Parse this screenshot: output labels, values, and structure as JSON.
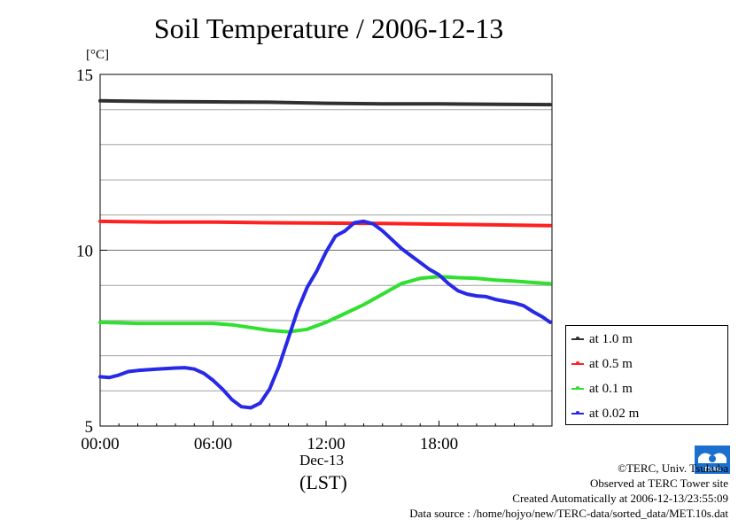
{
  "chart_data": {
    "type": "line",
    "title": "Soil Temperature / 2006-12-13",
    "unit": "[°C]",
    "xlim": [
      0,
      24
    ],
    "ylim": [
      5,
      15
    ],
    "y_major_ticks": [
      5,
      10,
      15
    ],
    "y_grid": [
      6,
      7,
      8,
      9,
      11,
      12,
      13,
      14
    ],
    "x_ticks": [
      0,
      6,
      12,
      18
    ],
    "x_tick_labels": [
      "00:00",
      "06:00",
      "12:00",
      "18:00"
    ],
    "x_date_label": "Dec-13",
    "x_label": "(LST)",
    "grid": true,
    "legend_position": "right",
    "series": [
      {
        "name": "at 1.0 m",
        "color": "#303030",
        "points": [
          [
            0,
            14.25
          ],
          [
            3,
            14.23
          ],
          [
            6,
            14.22
          ],
          [
            9,
            14.21
          ],
          [
            12,
            14.18
          ],
          [
            15,
            14.16
          ],
          [
            18,
            14.16
          ],
          [
            21,
            14.15
          ],
          [
            23.9,
            14.14
          ]
        ]
      },
      {
        "name": "at 0.5 m",
        "color": "#ff2020",
        "points": [
          [
            0,
            10.82
          ],
          [
            3,
            10.8
          ],
          [
            6,
            10.8
          ],
          [
            9,
            10.78
          ],
          [
            12,
            10.77
          ],
          [
            15,
            10.76
          ],
          [
            18,
            10.74
          ],
          [
            21,
            10.72
          ],
          [
            23.9,
            10.7
          ]
        ]
      },
      {
        "name": "at 0.1 m",
        "color": "#30e030",
        "points": [
          [
            0,
            7.95
          ],
          [
            2,
            7.92
          ],
          [
            4,
            7.92
          ],
          [
            6,
            7.92
          ],
          [
            7,
            7.88
          ],
          [
            8,
            7.8
          ],
          [
            9,
            7.72
          ],
          [
            10,
            7.68
          ],
          [
            11,
            7.75
          ],
          [
            12,
            7.95
          ],
          [
            13,
            8.2
          ],
          [
            14,
            8.45
          ],
          [
            15,
            8.75
          ],
          [
            16,
            9.05
          ],
          [
            17,
            9.2
          ],
          [
            18,
            9.25
          ],
          [
            19,
            9.22
          ],
          [
            20,
            9.2
          ],
          [
            21,
            9.15
          ],
          [
            22,
            9.12
          ],
          [
            23,
            9.08
          ],
          [
            23.9,
            9.05
          ]
        ]
      },
      {
        "name": "at 0.02 m",
        "color": "#2828e8",
        "points": [
          [
            0,
            6.4
          ],
          [
            0.5,
            6.38
          ],
          [
            1,
            6.45
          ],
          [
            1.5,
            6.55
          ],
          [
            2,
            6.58
          ],
          [
            3,
            6.62
          ],
          [
            4,
            6.65
          ],
          [
            4.5,
            6.66
          ],
          [
            5,
            6.62
          ],
          [
            5.5,
            6.5
          ],
          [
            6,
            6.3
          ],
          [
            6.5,
            6.05
          ],
          [
            7,
            5.75
          ],
          [
            7.5,
            5.55
          ],
          [
            8,
            5.52
          ],
          [
            8.5,
            5.65
          ],
          [
            9,
            6.05
          ],
          [
            9.5,
            6.7
          ],
          [
            10,
            7.5
          ],
          [
            10.5,
            8.3
          ],
          [
            11,
            8.95
          ],
          [
            11.5,
            9.4
          ],
          [
            12,
            9.95
          ],
          [
            12.5,
            10.4
          ],
          [
            13,
            10.55
          ],
          [
            13.5,
            10.78
          ],
          [
            14,
            10.82
          ],
          [
            14.5,
            10.75
          ],
          [
            15,
            10.55
          ],
          [
            15.5,
            10.3
          ],
          [
            16,
            10.05
          ],
          [
            16.5,
            9.85
          ],
          [
            17,
            9.65
          ],
          [
            17.5,
            9.45
          ],
          [
            18,
            9.3
          ],
          [
            18.5,
            9.05
          ],
          [
            19,
            8.85
          ],
          [
            19.5,
            8.75
          ],
          [
            20,
            8.7
          ],
          [
            20.5,
            8.68
          ],
          [
            21,
            8.6
          ],
          [
            21.5,
            8.55
          ],
          [
            22,
            8.5
          ],
          [
            22.5,
            8.42
          ],
          [
            23,
            8.25
          ],
          [
            23.5,
            8.1
          ],
          [
            23.9,
            7.95
          ]
        ]
      }
    ]
  },
  "credits": {
    "line1": "©TERC, Univ. Tsukuba",
    "line2": "Observed at TERC Tower site",
    "line3": "Created Automatically at 2006-12-13/23:55:09",
    "line4": "Data source : /home/hojyo/new/TERC-data/sorted_data/MET.10s.dat"
  },
  "logo": {
    "name": "TERC logo",
    "text": "TERC",
    "color": "#1b6fcf"
  }
}
